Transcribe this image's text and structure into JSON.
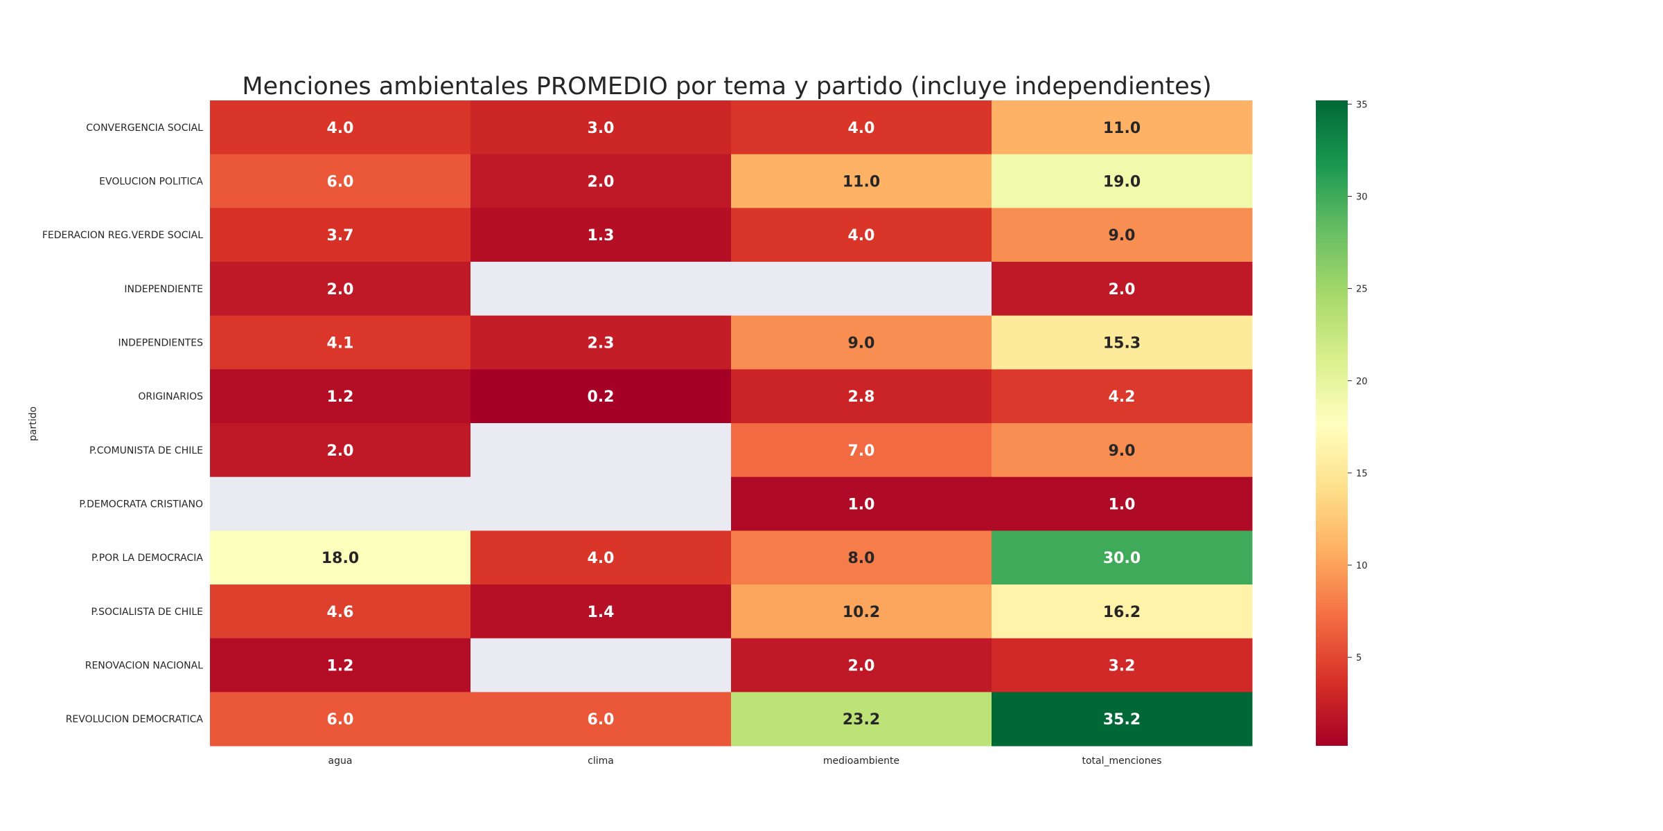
{
  "chart_data": {
    "type": "heatmap",
    "title": "Menciones ambientales PROMEDIO por tema y partido (incluye independientes)",
    "ylabel": "partido",
    "xlabel": "",
    "columns": [
      "agua",
      "clima",
      "medioambiente",
      "total_menciones"
    ],
    "rows": [
      "CONVERGENCIA SOCIAL",
      "EVOLUCION POLITICA",
      "FEDERACION REG.VERDE SOCIAL",
      "INDEPENDIENTE",
      "INDEPENDIENTES",
      "ORIGINARIOS",
      "P.COMUNISTA DE CHILE",
      "P.DEMOCRATA CRISTIANO",
      "P.POR LA DEMOCRACIA",
      "P.SOCIALISTA DE CHILE",
      "RENOVACION NACIONAL",
      "REVOLUCION DEMOCRATICA"
    ],
    "values": [
      [
        4.0,
        3.0,
        4.0,
        11.0
      ],
      [
        6.0,
        2.0,
        11.0,
        19.0
      ],
      [
        3.7,
        1.3,
        4.0,
        9.0
      ],
      [
        2.0,
        null,
        null,
        2.0
      ],
      [
        4.1,
        2.3,
        9.0,
        15.3
      ],
      [
        1.2,
        0.2,
        2.8,
        4.2
      ],
      [
        2.0,
        null,
        7.0,
        9.0
      ],
      [
        null,
        null,
        1.0,
        1.0
      ],
      [
        18.0,
        4.0,
        8.0,
        30.0
      ],
      [
        4.6,
        1.4,
        10.2,
        16.2
      ],
      [
        1.2,
        null,
        2.0,
        3.2
      ],
      [
        6.0,
        6.0,
        23.2,
        35.2
      ]
    ],
    "colormap": "RdYlGn",
    "vmin": 0.2,
    "vmax": 35.2,
    "colorbar_ticks": [
      5,
      10,
      15,
      20,
      25,
      30,
      35
    ],
    "missing_color": "#eaeaf2",
    "grid": false
  }
}
